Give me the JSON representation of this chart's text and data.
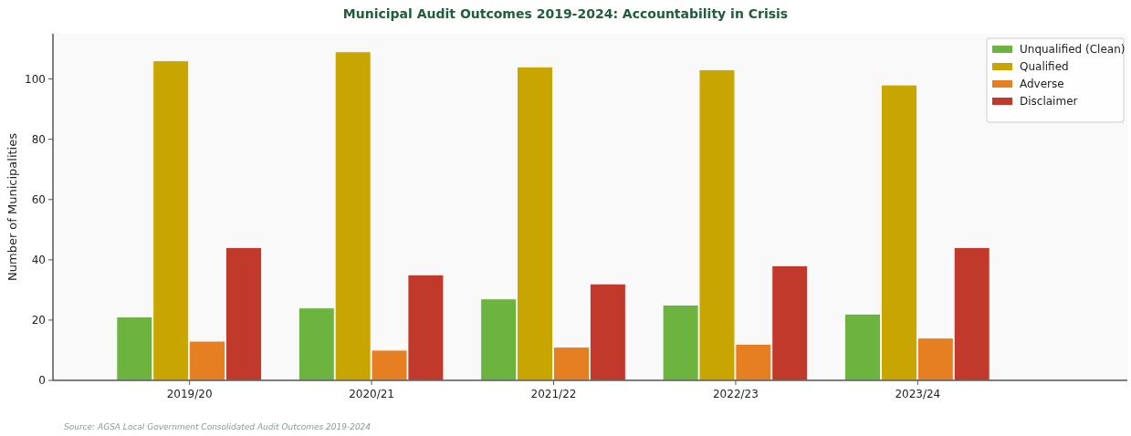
{
  "chart_data": {
    "type": "bar",
    "title": "Municipal Audit Outcomes 2019-2024: Accountability in Crisis",
    "ylabel": "Number of Municipalities",
    "annotations": [
      "Source: AGSA Local Government Consolidated Audit Outcomes 2019-2024"
    ],
    "categories": [
      "2019/20",
      "2020/21",
      "2021/22",
      "2022/23",
      "2023/24"
    ],
    "series": [
      {
        "name": "Unqualified (Clean)",
        "color": "#6db33f",
        "values": [
          21,
          24,
          27,
          25,
          22
        ]
      },
      {
        "name": "Qualified",
        "color": "#c9a500",
        "values": [
          106,
          109,
          104,
          103,
          98
        ]
      },
      {
        "name": "Adverse",
        "color": "#e67e22",
        "values": [
          13,
          10,
          11,
          12,
          14
        ]
      },
      {
        "name": "Disclaimer",
        "color": "#c0392b",
        "values": [
          44,
          35,
          32,
          38,
          44
        ]
      }
    ],
    "ylim": [
      0,
      115
    ],
    "yticks": [
      0,
      20,
      40,
      60,
      80,
      100
    ],
    "grid": false,
    "legend": "top right"
  }
}
